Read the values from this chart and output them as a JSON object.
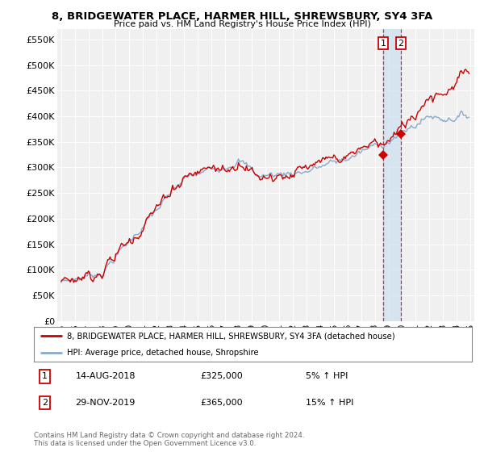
{
  "title": "8, BRIDGEWATER PLACE, HARMER HILL, SHREWSBURY, SY4 3FA",
  "subtitle": "Price paid vs. HM Land Registry's House Price Index (HPI)",
  "ylabel_ticks": [
    "£0",
    "£50K",
    "£100K",
    "£150K",
    "£200K",
    "£250K",
    "£300K",
    "£350K",
    "£400K",
    "£450K",
    "£500K",
    "£550K"
  ],
  "ytick_values": [
    0,
    50000,
    100000,
    150000,
    200000,
    250000,
    300000,
    350000,
    400000,
    450000,
    500000,
    550000
  ],
  "ylim": [
    0,
    570000
  ],
  "xlim_start": 1994.7,
  "xlim_end": 2025.3,
  "xticks": [
    1995,
    1996,
    1997,
    1998,
    1999,
    2000,
    2001,
    2002,
    2003,
    2004,
    2005,
    2006,
    2007,
    2008,
    2009,
    2010,
    2011,
    2012,
    2013,
    2014,
    2015,
    2016,
    2017,
    2018,
    2019,
    2020,
    2021,
    2022,
    2023,
    2024,
    2025
  ],
  "line1_color": "#cc0000",
  "line2_color": "#88aacc",
  "transaction1_x": 2018.62,
  "transaction1_y": 325000,
  "transaction2_x": 2019.91,
  "transaction2_y": 365000,
  "vline1_x": 2018.62,
  "vline2_x": 2019.91,
  "shade_color": "#cce0f0",
  "legend_line1": "8, BRIDGEWATER PLACE, HARMER HILL, SHREWSBURY, SY4 3FA (detached house)",
  "legend_line2": "HPI: Average price, detached house, Shropshire",
  "ann1_date": "14-AUG-2018",
  "ann1_price": "£325,000",
  "ann1_hpi": "5% ↑ HPI",
  "ann2_date": "29-NOV-2019",
  "ann2_price": "£365,000",
  "ann2_hpi": "15% ↑ HPI",
  "footnote": "Contains HM Land Registry data © Crown copyright and database right 2024.\nThis data is licensed under the Open Government Licence v3.0.",
  "background_color": "#ffffff",
  "plot_bg_color": "#f0f0f0"
}
